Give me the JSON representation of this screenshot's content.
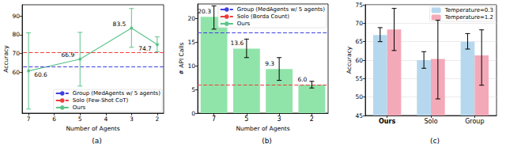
{
  "chart_data": [
    {
      "type": "line",
      "title": "(a)",
      "x_label": "Number of Agents",
      "y_label": "Accuracy",
      "x": [
        7,
        5,
        3,
        2
      ],
      "series": [
        {
          "name": "Ours",
          "color": "#5cc48a",
          "marker": "circle",
          "values": [
            60.6,
            66.9,
            83.5,
            74.7
          ],
          "error_bars": [
            [
              40.2,
              81.0
            ],
            [
              52.5,
              81.2
            ],
            [
              73.2,
              94.0
            ],
            [
              70.8,
              78.8
            ]
          ]
        }
      ],
      "reference_lines": [
        {
          "name": "Group (MedAgents w/ 5 agents)",
          "value": 63.0,
          "color": "#3f3fdf",
          "line_style": "dashed"
        },
        {
          "name": "Solo (Few-Shot CoT)",
          "value": 70.6,
          "color": "#ee3b3b",
          "line_style": "dashed"
        }
      ],
      "xlim": [
        7.25,
        1.75
      ],
      "xticks": [
        7,
        6,
        5,
        4,
        3,
        2
      ],
      "ylim": [
        38,
        96
      ],
      "yticks": [
        60,
        70,
        80,
        90
      ],
      "data_labels": true,
      "grid": false,
      "legend": "lower right"
    },
    {
      "type": "bar",
      "title": "(b)",
      "x_label": "Number of Agents",
      "y_label": "# API Calls",
      "categories": [
        "7",
        "5",
        "3",
        "2"
      ],
      "series": [
        {
          "name": "Ours",
          "color": "#90e4a9",
          "values": [
            20.3,
            13.6,
            9.3,
            6.0
          ],
          "value_labels": [
            "20.3",
            "13.6",
            "9.3",
            "6.0"
          ],
          "error_bars": [
            [
              17.7,
              22.6
            ],
            [
              11.7,
              15.6
            ],
            [
              6.9,
              11.7
            ],
            [
              5.3,
              6.7
            ]
          ]
        }
      ],
      "reference_lines": [
        {
          "name": "Group (MedAgents w/ 5 agents)",
          "value": 17.0,
          "color": "#3f3fdf",
          "line_style": "dashed"
        },
        {
          "name": "Solo (Borda Count)",
          "value": 6.0,
          "color": "#ee3b3b",
          "line_style": "dashed"
        }
      ],
      "ylim": [
        0,
        23
      ],
      "yticks": [
        0,
        5,
        10,
        15,
        20
      ],
      "data_labels": true,
      "grid": false,
      "legend": "upper right"
    },
    {
      "type": "bar",
      "title": "(c)",
      "y_label": "Accuracy",
      "categories": [
        "Ours",
        "Solo",
        "Group"
      ],
      "series": [
        {
          "name": "Temperature=0.3",
          "color": "#b6d8ef",
          "values": [
            66.8,
            60.0,
            65.0
          ],
          "error_bars": [
            [
              65.0,
              68.8
            ],
            [
              57.8,
              62.3
            ],
            [
              63.0,
              67.2
            ]
          ]
        },
        {
          "name": "Temperature=1.2",
          "color": "#f4a9b8",
          "values": [
            68.3,
            60.3,
            61.3
          ],
          "error_bars": [
            [
              62.6,
              74.0
            ],
            [
              49.5,
              70.8
            ],
            [
              53.2,
              68.2
            ]
          ]
        }
      ],
      "ylim": [
        45,
        75
      ],
      "yticks": [
        45,
        50,
        55,
        60,
        65,
        70,
        75
      ],
      "grid": true,
      "legend": "upper right"
    }
  ]
}
